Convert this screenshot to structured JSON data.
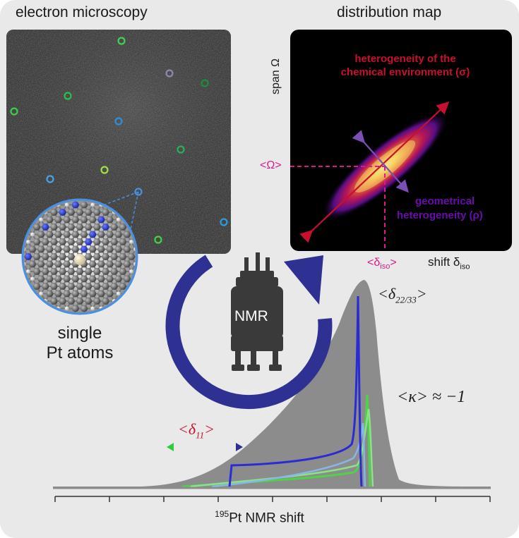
{
  "left_panel": {
    "title": "electron microscopy",
    "caption_line1": "single",
    "caption_line2": "Pt atoms"
  },
  "right_panel": {
    "title": "distribution map",
    "y_label": "span Ω",
    "x_label_prefix": "shift δ",
    "x_label_sub": "iso",
    "annot_red_line1": "heterogeneity of the",
    "annot_red_line2": "chemical environment (σ)",
    "annot_purple_line1": "geometrical",
    "annot_purple_line2": "heterogeneity (ρ)",
    "mean_span_label": "<Ω>",
    "mean_shift_prefix": "<δ",
    "mean_shift_sub": "iso",
    "mean_shift_suffix": ">"
  },
  "nmr_label": "NMR",
  "spectrum": {
    "xlabel_sup": "195",
    "xlabel": "Pt NMR shift",
    "label_d11_prefix": "<δ",
    "label_d11_sub": "11",
    "label_d11_suffix": ">",
    "label_d2233_prefix": "<δ",
    "label_d2233_sub": "22/33",
    "label_d2233_suffix": ">",
    "label_kappa": "<κ> ≈ −1"
  },
  "colors": {
    "panel_bg": "#e9e9e9",
    "annot_red": "#c8102e",
    "annot_purple": "#6a0dad",
    "mean_marker": "#d81b8c",
    "arrow_navy": "#2e3192",
    "envelope_gray": "#8c8c8c"
  }
}
